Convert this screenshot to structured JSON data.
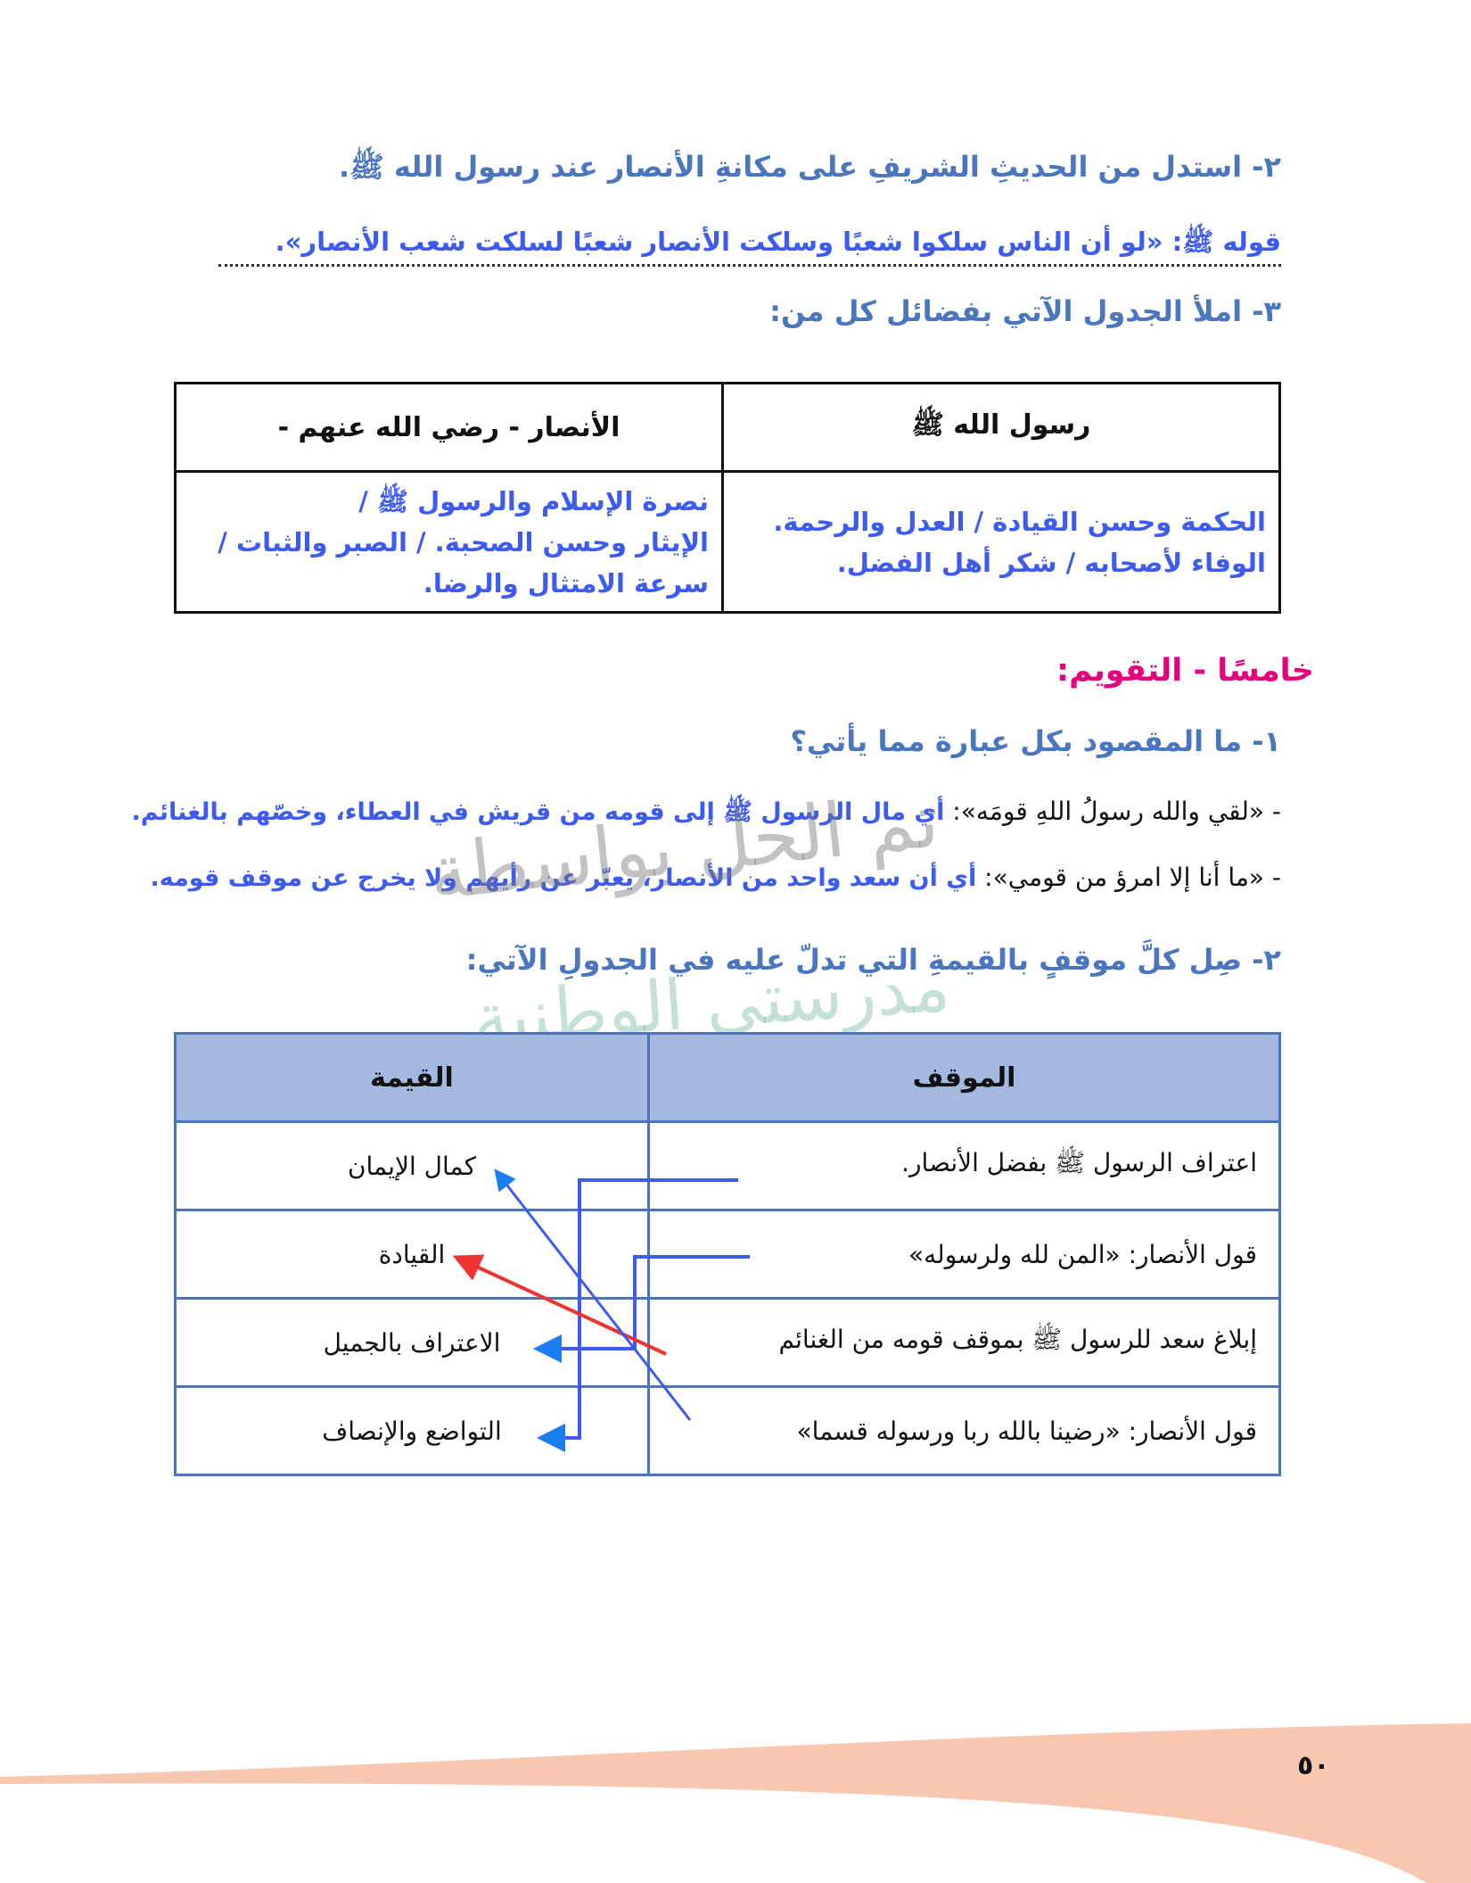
{
  "section_4": {
    "q2": "٢- استدل من الحديثِ الشريفِ على مكانةِ الأنصار عند رسول الله ﷺ.",
    "q2_answer": "قوله ﷺ: «لو أن الناس سلكوا شعبًا وسلكت الأنصار شعبًا لسلكت شعب الأنصار».",
    "q3": "٣- املأ الجدول الآتي بفضائل كل من:",
    "table": {
      "headers": [
        "رسول الله ﷺ",
        "الأنصار - رضي الله عنهم -"
      ],
      "cells": [
        [
          "الحكمة وحسن القيادة / العدل والرحمة.",
          "الوفاء لأصحابه / شكر أهل الفضل."
        ],
        [
          "نصرة الإسلام والرسول ﷺ /",
          "الإيثار وحسن الصحبة. / الصبر والثبات /",
          "سرعة الامتثال والرضا."
        ]
      ]
    }
  },
  "section_5": {
    "title": "خامسًا - التقويم:",
    "title_color": "#e6007e",
    "q1": "١- ما المقصود بكل عبارة مما يأتي؟",
    "items": [
      {
        "phrase": "- «لقي والله رسولُ اللهِ قومَه»:",
        "answer": "أي مال الرسول ﷺ إلى قومه من قريش في العطاء، وخصّهم بالغنائم."
      },
      {
        "phrase": "- «ما أنا إلا امرؤ من قومي»:",
        "answer": "أي أن سعد واحد من الأنصار، يعبّر عن رأيهم ولا يخرج عن موقف قومه."
      }
    ],
    "q2": "٢- صِل كلَّ موقفٍ بالقيمةِ التي تدلّ عليه في الجدولِ الآتي:",
    "table": {
      "headers": [
        "الموقف",
        "القيمة"
      ],
      "situations": [
        "اعتراف الرسول ﷺ بفضل الأنصار.",
        "قول الأنصار: «المن لله ولرسوله»",
        "إبلاغ سعد للرسول ﷺ بموقف قومه من الغنائم",
        "قول الأنصار: «رضينا بالله ربا ورسوله قسما»"
      ],
      "values": [
        "كمال الإيمان",
        "القيادة",
        "الاعتراف بالجميل",
        "التواضع والإنصاف"
      ],
      "matches": [
        {
          "situation": 1,
          "value": 4,
          "color": "#3d5af1"
        },
        {
          "situation": 2,
          "value": 3,
          "color": "#3d5af1"
        },
        {
          "situation": 3,
          "value": 2,
          "color": "#ee3333"
        },
        {
          "situation": 4,
          "value": 1,
          "color": "#3d5af1"
        }
      ]
    }
  },
  "watermark": [
    "تم الحل بواسطة",
    "مدرستي الوطنية"
  ],
  "page_number": "٥٠",
  "colors": {
    "heading": "#4a76bf",
    "answer": "#3d5af1",
    "table_header": "#a3b9e0",
    "footer_wave": "#f8c7b0"
  }
}
